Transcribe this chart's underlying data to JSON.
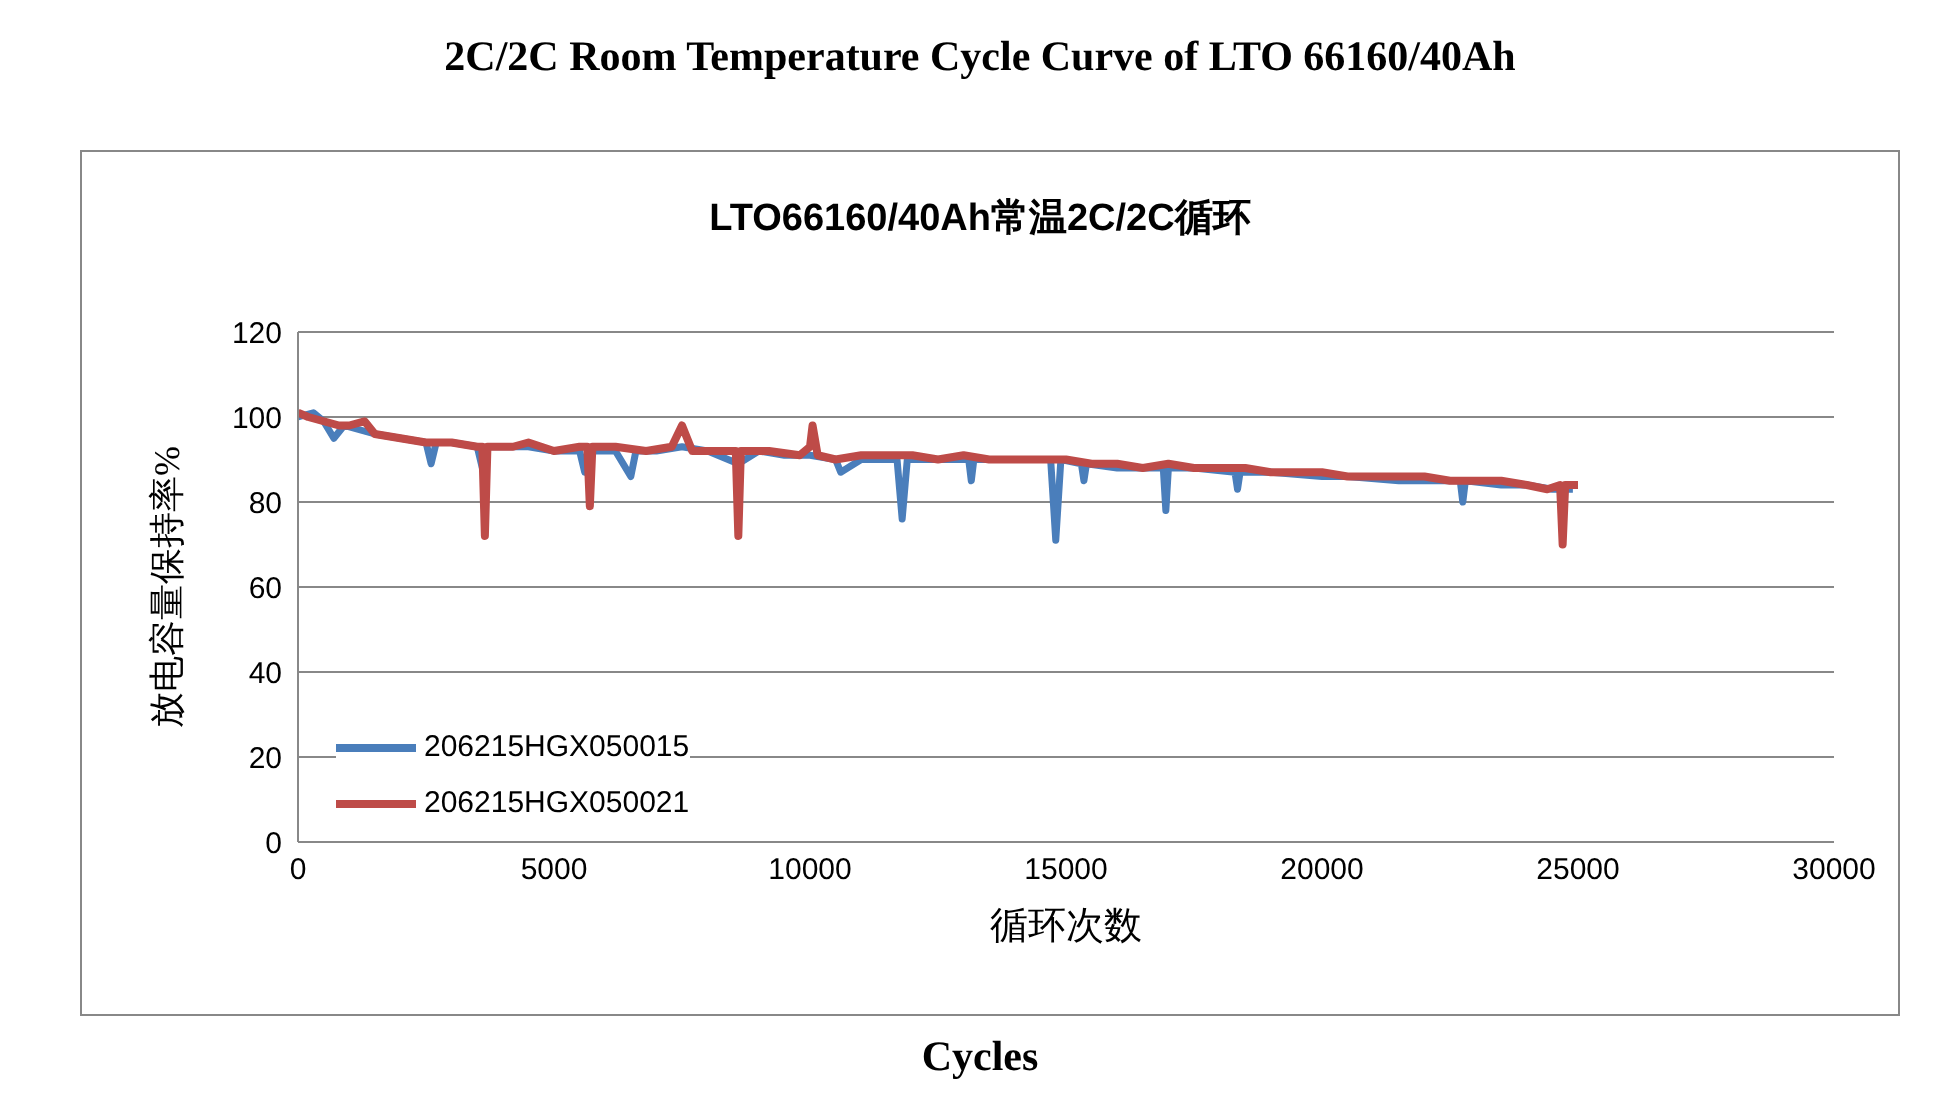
{
  "chart_data": {
    "type": "line",
    "title": "2C/2C Room Temperature Cycle Curve of LTO 66160/40Ah",
    "subtitle": "LTO66160/40Ah常温2C/2C循环",
    "xlabel": "循环次数",
    "ylabel": "放电容量保持率%",
    "annotations": [
      "Cycles"
    ],
    "xlim": [
      0,
      30000
    ],
    "xticks": [
      0,
      5000,
      10000,
      15000,
      20000,
      25000,
      30000
    ],
    "ylim": [
      0,
      120
    ],
    "yticks": [
      0,
      20,
      40,
      60,
      80,
      100,
      120
    ],
    "grid": "y",
    "legend": "bottom left",
    "marker": "none",
    "line_style": "solid",
    "series": [
      {
        "name": "206215HGX050015",
        "color": "#4a7ebb",
        "x": [
          0,
          300,
          500,
          700,
          900,
          1500,
          2000,
          2500,
          2600,
          2700,
          3000,
          3500,
          3600,
          3700,
          4500,
          5000,
          5500,
          5600,
          5700,
          6200,
          6500,
          6600,
          7000,
          7500,
          8000,
          8600,
          9000,
          9500,
          10000,
          10500,
          10600,
          11000,
          11700,
          11800,
          11900,
          12500,
          13100,
          13150,
          13200,
          14000,
          14700,
          14800,
          14900,
          15300,
          15350,
          15400,
          16000,
          16900,
          16950,
          17000,
          17500,
          18300,
          18350,
          18400,
          19000,
          20000,
          20500,
          21500,
          22000,
          22700,
          22750,
          22800,
          23500,
          24000,
          24500,
          24900
        ],
        "values": [
          100,
          101,
          99,
          95,
          98,
          96,
          95,
          94,
          89,
          94,
          94,
          93,
          88,
          93,
          93,
          92,
          92,
          87,
          92,
          92,
          86,
          92,
          92,
          93,
          92,
          89,
          92,
          91,
          91,
          90,
          87,
          90,
          90,
          76,
          90,
          90,
          90,
          85,
          90,
          90,
          90,
          71,
          90,
          89,
          85,
          89,
          88,
          88,
          78,
          88,
          88,
          87,
          83,
          87,
          87,
          86,
          86,
          85,
          85,
          85,
          80,
          85,
          84,
          84,
          83,
          83
        ]
      },
      {
        "name": "206215HGX050021",
        "color": "#be4b48",
        "x": [
          0,
          200,
          500,
          800,
          1000,
          1300,
          1500,
          2000,
          2500,
          3000,
          3500,
          3600,
          3650,
          3700,
          4200,
          4500,
          5000,
          5500,
          5650,
          5700,
          5750,
          6200,
          6800,
          7300,
          7500,
          7700,
          8200,
          8550,
          8600,
          8650,
          9200,
          9800,
          10000,
          10050,
          10150,
          10500,
          11000,
          11500,
          12000,
          12500,
          13000,
          13500,
          14000,
          14500,
          15000,
          15500,
          16000,
          16500,
          17000,
          17500,
          18000,
          18500,
          19000,
          19500,
          20000,
          20500,
          21000,
          21500,
          22000,
          22500,
          23000,
          23500,
          24000,
          24400,
          24650,
          24700,
          24750,
          25000
        ],
        "values": [
          101,
          100,
          99,
          98,
          98,
          99,
          96,
          95,
          94,
          94,
          93,
          93,
          72,
          93,
          93,
          94,
          92,
          93,
          93,
          79,
          93,
          93,
          92,
          93,
          98,
          92,
          92,
          92,
          72,
          92,
          92,
          91,
          93,
          98,
          91,
          90,
          91,
          91,
          91,
          90,
          91,
          90,
          90,
          90,
          90,
          89,
          89,
          88,
          89,
          88,
          88,
          88,
          87,
          87,
          87,
          86,
          86,
          86,
          86,
          85,
          85,
          85,
          84,
          83,
          84,
          70,
          84,
          84
        ]
      }
    ]
  }
}
